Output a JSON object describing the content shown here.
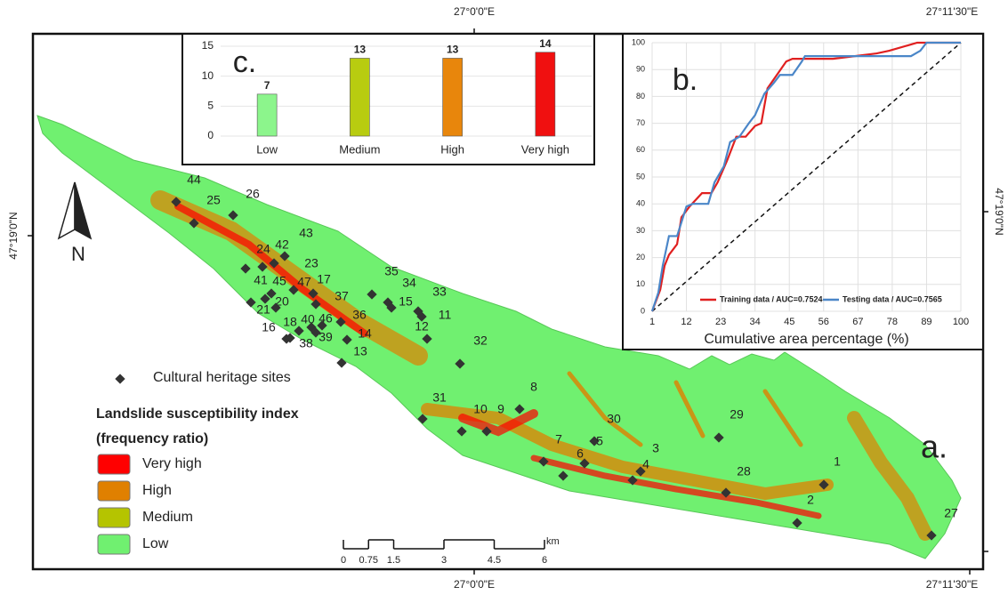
{
  "map": {
    "coordinates": {
      "top": [
        "27°0'0\"E",
        "27°11'30\"E"
      ],
      "bottom": [
        "27°0'0\"E",
        "27°11'30\"E"
      ],
      "left": [
        "47°19'0\"N"
      ],
      "right": [
        "47°19'0\"N"
      ]
    },
    "panel_label": "a.",
    "north": "N",
    "sites": {
      "label": "Cultural heritage sites",
      "ids": [
        "44",
        "25",
        "26",
        "24",
        "42",
        "43",
        "23",
        "41",
        "45",
        "47",
        "17",
        "20",
        "21",
        "37",
        "35",
        "34",
        "15",
        "33",
        "11",
        "12",
        "36",
        "18",
        "40",
        "46",
        "16",
        "38",
        "39",
        "14",
        "13",
        "32",
        "31",
        "10",
        "9",
        "8",
        "30",
        "29",
        "7",
        "6",
        "5",
        "3",
        "4",
        "28",
        "1",
        "2",
        "27"
      ]
    },
    "legend": {
      "title": "Landslide susceptibility index",
      "subtitle": "(frequency ratio)",
      "classes": [
        {
          "name": "Very high",
          "color": "#ff0000"
        },
        {
          "name": "High",
          "color": "#e08000"
        },
        {
          "name": "Medium",
          "color": "#b5c400"
        },
        {
          "name": "Low",
          "color": "#70f070"
        }
      ]
    },
    "scale": {
      "ticks": [
        0,
        0.75,
        1.5,
        3,
        4.5,
        6
      ],
      "unit": "km"
    }
  },
  "chart_data": [
    {
      "type": "bar",
      "panel_label": "c.",
      "categories": [
        "Low",
        "Medium",
        "High",
        "Very high"
      ],
      "values": [
        7,
        13,
        13,
        14
      ],
      "colors": [
        "#8cf58c",
        "#b8cc10",
        "#e8860c",
        "#f01010"
      ],
      "ylim": [
        0,
        15
      ],
      "yticks": [
        0,
        5,
        10,
        15
      ]
    },
    {
      "type": "line",
      "panel_label": "b.",
      "x_label": "Cumulative area percentage (%)",
      "xlim": [
        1,
        100
      ],
      "xticks": [
        1,
        12,
        23,
        34,
        45,
        56,
        67,
        78,
        89,
        100
      ],
      "ylim": [
        0,
        100
      ],
      "yticks": [
        0,
        10,
        20,
        30,
        40,
        50,
        60,
        70,
        80,
        90,
        100
      ],
      "grid": true,
      "series": [
        {
          "name": "Training data / AUC=0.7524",
          "color": "#e02020",
          "x": [
            1,
            3.6,
            5,
            6.4,
            9,
            10.4,
            13,
            17,
            20,
            22,
            25,
            28,
            31,
            34,
            36,
            38,
            41,
            44,
            46,
            52,
            59,
            66,
            73,
            77,
            83,
            86,
            100
          ],
          "values": [
            0,
            8,
            17,
            21,
            25,
            35,
            39,
            44,
            44,
            48,
            56,
            65,
            65,
            69,
            70,
            83,
            88,
            93,
            94,
            94,
            94,
            95,
            96,
            97,
            99,
            100,
            100
          ]
        },
        {
          "name": "Testing data / AUC=0.7565",
          "color": "#4a86c8",
          "x": [
            1,
            3,
            4.4,
            6.4,
            9,
            12,
            14,
            19,
            21,
            24,
            26,
            29,
            32,
            34,
            37,
            40,
            42,
            46,
            49,
            50,
            57,
            84,
            87,
            89,
            100
          ],
          "values": [
            0,
            7,
            17,
            28,
            28,
            39,
            40,
            40,
            48,
            54,
            63,
            65,
            70,
            73,
            81,
            85,
            88,
            88,
            93,
            95,
            95,
            95,
            97,
            100,
            100
          ]
        }
      ]
    }
  ]
}
